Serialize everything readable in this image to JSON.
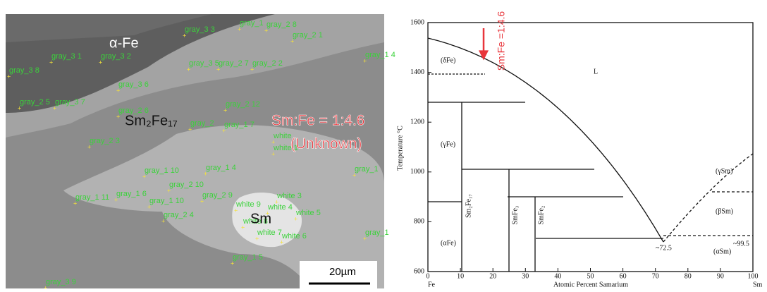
{
  "micrograph": {
    "phases": {
      "alpha_fe": "α-Fe",
      "sm2fe17": "Sm₂Fe₁₇",
      "sm": "Sm",
      "ratio": "Sm:Fe = 1:4.6",
      "unknown": "(Unknown)"
    },
    "scale_bar": "20µm",
    "points": [
      "gray_3 3",
      "gray_1",
      "gray_2 8",
      "gray_2 1",
      "gray_1 4",
      "gray_3 1",
      "gray_3 2",
      "gray_3 8",
      "gray_3 5",
      "gray_2 7",
      "gray_2 2",
      "gray_3 6",
      "gray_2 5",
      "gray_3 7",
      "gray_2 6",
      "gray_2 12",
      "gray_2",
      "gray_1 7",
      "white",
      "white 1",
      "gray_2 3",
      "gray_1 10",
      "gray_1 4",
      "gray_2 10",
      "gray_1",
      "gray_1 11",
      "gray_1 6",
      "gray_1 10",
      "gray_2 9",
      "white 3",
      "white 9",
      "white 4",
      "white 5",
      "white 8",
      "gray_2 4",
      "white 7",
      "white 6",
      "gray_1",
      "gray_1 5",
      "gray_3 9"
    ]
  },
  "phase_diagram": {
    "y_label": "Temperature °C",
    "x_label": "Atomic Percent Samarium",
    "x_left": "Fe",
    "x_right": "Sm",
    "xticks": [
      0,
      10,
      20,
      30,
      40,
      50,
      60,
      70,
      80,
      90,
      100
    ],
    "yticks": [
      600,
      800,
      1000,
      1200,
      1400,
      1600
    ],
    "regions": {
      "liquid": "L",
      "delta_fe": "(δFe)",
      "gamma_fe": "(γFe)",
      "alpha_fe": "(αFe)",
      "gamma_sm": "(γSm)",
      "beta_sm": "(βSm)",
      "alpha_sm": "(αSm)"
    },
    "eutectic": "~72.5",
    "sm_limit": "~99.5",
    "compounds": [
      "Sm₂Fe₁₇",
      "SmFe₃",
      "SmFe₂"
    ],
    "annotation": "Sm:Fe =1:4.6"
  }
}
